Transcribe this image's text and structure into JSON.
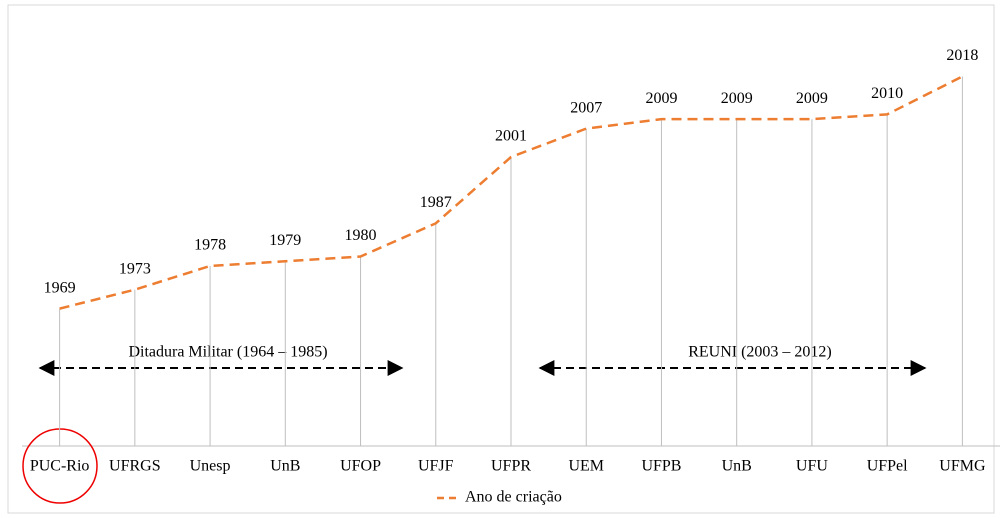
{
  "chart_data": {
    "type": "line",
    "categories": [
      "PUC-Rio",
      "UFRGS",
      "Unesp",
      "UnB",
      "UFOP",
      "UFJF",
      "UFPR",
      "UEM",
      "UFPB",
      "UnB",
      "UFU",
      "UFPel",
      "UFMG"
    ],
    "series": [
      {
        "name": "Ano de criação",
        "color": "#ED7D31",
        "values": [
          1969,
          1973,
          1978,
          1979,
          1980,
          1987,
          2001,
          2007,
          2009,
          2009,
          2009,
          2010,
          2018
        ]
      }
    ],
    "ylim": [
      1940,
      2020
    ],
    "annotations": [
      "Ditadura Militar (1964 – 1985)",
      "REUNI (2003 – 2012)"
    ],
    "legend": "bottom"
  }
}
